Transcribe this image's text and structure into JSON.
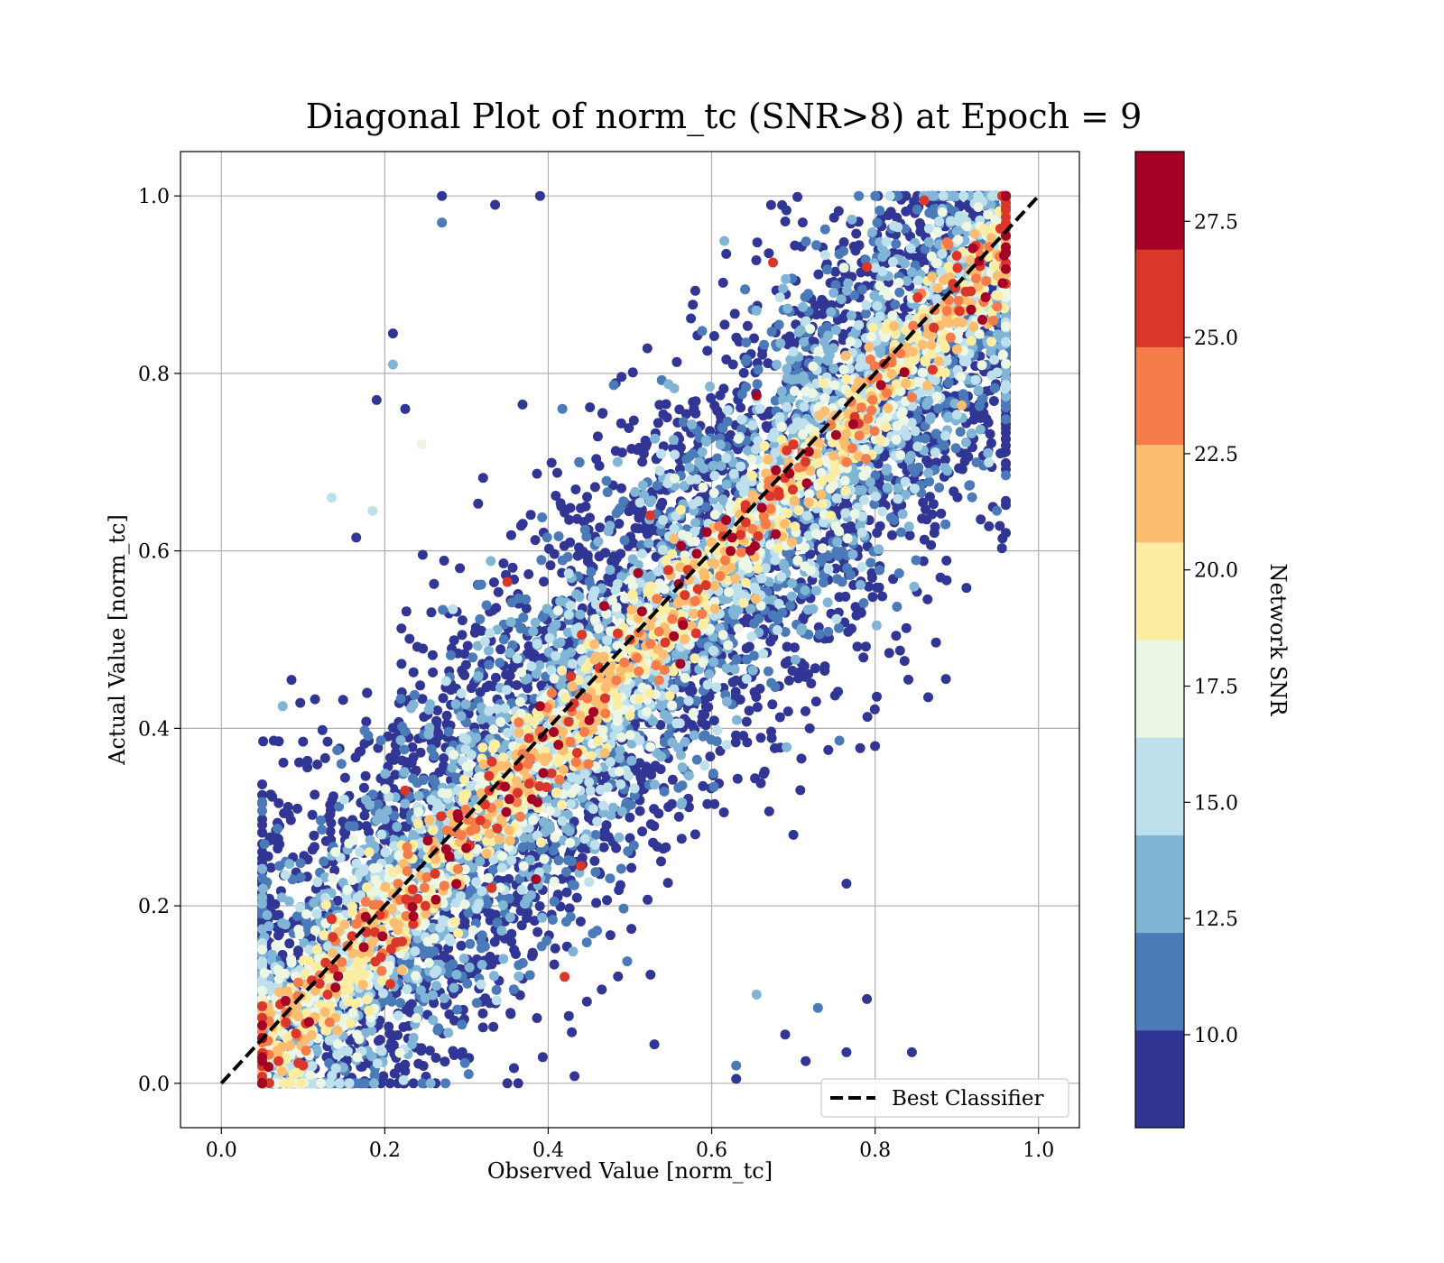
{
  "chart_data": {
    "type": "scatter",
    "title": "Diagonal Plot of norm_tc (SNR>8) at Epoch = 9",
    "xlabel": "Observed Value [norm_tc]",
    "ylabel": "Actual Value [norm_tc]",
    "xlim": [
      -0.05,
      1.05
    ],
    "ylim": [
      -0.05,
      1.05
    ],
    "x_ticks": [
      "0.0",
      "0.2",
      "0.4",
      "0.6",
      "0.8",
      "1.0"
    ],
    "y_ticks": [
      "0.0",
      "0.2",
      "0.4",
      "0.6",
      "0.8",
      "1.0"
    ],
    "grid": true,
    "legend": {
      "placement": "lower-right",
      "entries": [
        "Best Classifier"
      ]
    },
    "reference_line": {
      "name": "Best Classifier",
      "x": [
        0,
        1
      ],
      "y": [
        0,
        1
      ],
      "style": "dashed",
      "color": "#000000"
    },
    "colorbar": {
      "label": "Network SNR",
      "range": [
        8,
        29
      ],
      "ticks": [
        "10.0",
        "12.5",
        "15.0",
        "17.5",
        "20.0",
        "22.5",
        "25.0",
        "27.5"
      ],
      "colors": [
        "#313695",
        "#4575b4",
        "#74add1",
        "#abd9e9",
        "#e0f3f8",
        "#ffffbf",
        "#fee090",
        "#fdae61",
        "#f46d43",
        "#d73027",
        "#a50026"
      ],
      "discrete_levels": [
        "#313695",
        "#4a7ab7",
        "#81b5d6",
        "#bde0ec",
        "#ebf6e4",
        "#fdeda2",
        "#fdbd70",
        "#f57b4a",
        "#da372a",
        "#a50026"
      ]
    },
    "points": [
      [
        0.27,
        1.0,
        8.5
      ],
      [
        0.335,
        0.99,
        8.6
      ],
      [
        0.39,
        1.0,
        8.4
      ],
      [
        0.27,
        0.97,
        11.0
      ],
      [
        0.21,
        0.845,
        9.0
      ],
      [
        0.21,
        0.81,
        13.0
      ],
      [
        0.19,
        0.77,
        8.5
      ],
      [
        0.225,
        0.76,
        8.7
      ],
      [
        0.245,
        0.72,
        18.0
      ],
      [
        0.135,
        0.66,
        15.0
      ],
      [
        0.185,
        0.645,
        16.0
      ],
      [
        0.165,
        0.615,
        8.6
      ],
      [
        0.075,
        0.425,
        13.5
      ],
      [
        0.13,
        0.385,
        8.5
      ],
      [
        0.845,
        0.035,
        8.5
      ],
      [
        0.765,
        0.035,
        8.6
      ],
      [
        0.79,
        0.095,
        8.5
      ],
      [
        0.765,
        0.225,
        8.4
      ],
      [
        0.8,
        0.38,
        8.5
      ],
      [
        0.865,
        0.435,
        8.6
      ],
      [
        0.88,
        0.57,
        8.5
      ],
      [
        0.95,
        0.8,
        8.4
      ],
      [
        0.72,
        0.4,
        8.6
      ],
      [
        0.7,
        0.28,
        8.5
      ],
      [
        0.655,
        0.1,
        14.0
      ],
      [
        0.73,
        0.085,
        11.0
      ],
      [
        0.715,
        0.025,
        8.5
      ],
      [
        0.69,
        0.055,
        8.5
      ],
      [
        0.63,
        0.005,
        8.6
      ],
      [
        0.63,
        0.02,
        10.5
      ],
      [
        0.675,
        0.925,
        26.0
      ],
      [
        0.655,
        0.775,
        28.0
      ],
      [
        0.525,
        0.64,
        26.5
      ],
      [
        0.51,
        0.575,
        27.0
      ],
      [
        0.625,
        0.615,
        27.5
      ],
      [
        0.39,
        0.425,
        28.0
      ],
      [
        0.385,
        0.23,
        27.0
      ],
      [
        0.44,
        0.245,
        26.0
      ],
      [
        0.1,
        0.02,
        26.0
      ],
      [
        0.07,
        0.025,
        25.0
      ],
      [
        0.13,
        0.1,
        26.0
      ],
      [
        0.135,
        0.185,
        25.5
      ],
      [
        0.42,
        0.12,
        26.0
      ],
      [
        0.35,
        0.565,
        26.0
      ],
      [
        0.5,
        0.5,
        26.0
      ],
      [
        0.86,
        0.995,
        26.0
      ],
      [
        0.79,
        0.92,
        26.0
      ],
      [
        0.7,
        0.72,
        26.5
      ],
      [
        0.225,
        0.33,
        26.0
      ],
      [
        0.89,
        0.945,
        24.0
      ]
    ]
  }
}
